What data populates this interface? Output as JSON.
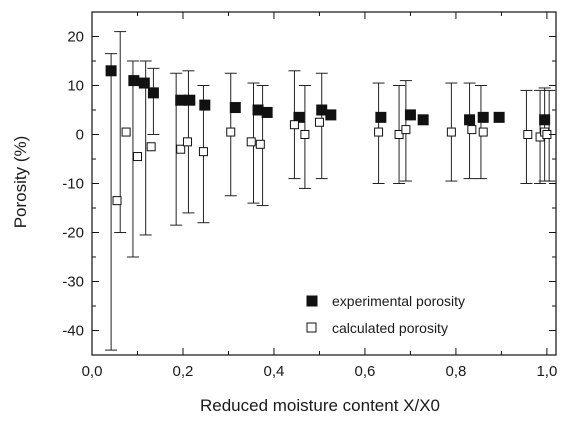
{
  "chart_data": {
    "type": "scatter",
    "xlabel": "Reduced moisture content X/X0",
    "ylabel": "Porosity (%)",
    "xlim": [
      0.0,
      1.02
    ],
    "ylim": [
      -45,
      25
    ],
    "x_ticks": [
      0.0,
      0.2,
      0.4,
      0.6,
      0.8,
      1.0
    ],
    "x_tick_labels": [
      "0,0",
      "0,2",
      "0,4",
      "0,6",
      "0,8",
      "1,0"
    ],
    "y_ticks": [
      -40,
      -30,
      -20,
      -10,
      0,
      10,
      20
    ],
    "y_tick_labels": [
      "-40",
      "-30",
      "-20",
      "-10",
      "0",
      "10",
      "20"
    ],
    "grid": false,
    "legend_position": "bottom-right",
    "series": [
      {
        "name": "experimental porosity",
        "marker": "filled-square",
        "color": "#111111",
        "x": [
          0.042,
          0.092,
          0.115,
          0.135,
          0.195,
          0.215,
          0.248,
          0.315,
          0.365,
          0.385,
          0.455,
          0.505,
          0.525,
          0.635,
          0.7,
          0.728,
          0.83,
          0.86,
          0.895,
          0.995
        ],
        "y": [
          13.0,
          11.0,
          10.5,
          8.5,
          7.0,
          7.0,
          6.0,
          5.5,
          5.0,
          4.5,
          3.5,
          5.0,
          4.0,
          3.5,
          4.0,
          3.0,
          3.0,
          3.5,
          3.5,
          3.0
        ]
      },
      {
        "name": "calculated porosity",
        "marker": "open-square",
        "color": "#111111",
        "x": [
          0.055,
          0.075,
          0.1,
          0.13,
          0.195,
          0.21,
          0.245,
          0.305,
          0.35,
          0.37,
          0.445,
          0.468,
          0.5,
          0.63,
          0.675,
          0.69,
          0.79,
          0.835,
          0.86,
          0.958,
          0.985,
          0.995,
          1.0
        ],
        "y": [
          -13.5,
          0.5,
          -4.5,
          -2.5,
          -3.0,
          -1.5,
          -3.5,
          0.5,
          -1.5,
          -2.0,
          2.0,
          0.0,
          2.5,
          0.5,
          0.0,
          1.0,
          0.5,
          1.0,
          0.5,
          0.0,
          -0.5,
          0.5,
          0.0
        ]
      }
    ],
    "error_bars": [
      {
        "x": 0.042,
        "low": -44.0,
        "high": 16.5
      },
      {
        "x": 0.062,
        "low": -20.0,
        "high": 21.0
      },
      {
        "x": 0.09,
        "low": -25.0,
        "high": 15.0
      },
      {
        "x": 0.118,
        "low": -20.5,
        "high": 15.0
      },
      {
        "x": 0.135,
        "low": 0.0,
        "high": 13.5
      },
      {
        "x": 0.185,
        "low": -18.5,
        "high": 12.5
      },
      {
        "x": 0.212,
        "low": -16.0,
        "high": 13.0
      },
      {
        "x": 0.245,
        "low": -18.0,
        "high": 10.0
      },
      {
        "x": 0.305,
        "low": -12.5,
        "high": 12.5
      },
      {
        "x": 0.355,
        "low": -14.0,
        "high": 10.5
      },
      {
        "x": 0.375,
        "low": -14.5,
        "high": 10.0
      },
      {
        "x": 0.445,
        "low": -9.0,
        "high": 13.0
      },
      {
        "x": 0.468,
        "low": -11.0,
        "high": 10.0
      },
      {
        "x": 0.505,
        "low": -9.0,
        "high": 12.5
      },
      {
        "x": 0.63,
        "low": -10.0,
        "high": 10.5
      },
      {
        "x": 0.675,
        "low": -10.0,
        "high": 10.0
      },
      {
        "x": 0.69,
        "low": -9.5,
        "high": 11.0
      },
      {
        "x": 0.79,
        "low": -9.5,
        "high": 10.5
      },
      {
        "x": 0.83,
        "low": -9.0,
        "high": 10.5
      },
      {
        "x": 0.855,
        "low": -9.0,
        "high": 10.0
      },
      {
        "x": 0.955,
        "low": -10.0,
        "high": 9.0
      },
      {
        "x": 0.985,
        "low": -10.0,
        "high": 9.0
      },
      {
        "x": 0.995,
        "low": -9.5,
        "high": 9.5
      },
      {
        "x": 1.005,
        "low": -9.5,
        "high": 9.0
      }
    ],
    "legend": [
      {
        "label": "experimental porosity",
        "marker": "filled-square"
      },
      {
        "label": "calculated porosity",
        "marker": "open-square"
      }
    ]
  }
}
